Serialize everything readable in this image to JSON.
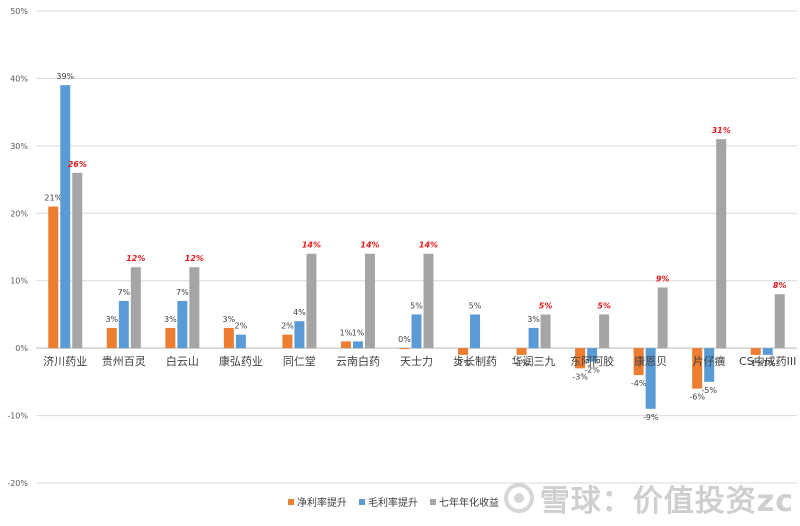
{
  "chart_data": {
    "type": "bar",
    "categories": [
      "济川药业",
      "贵州百灵",
      "白云山",
      "康弘药业",
      "同仁堂",
      "云南白药",
      "天士力",
      "步长制药",
      "华润三九",
      "东阿阿胶",
      "康恩贝",
      "片仔癀",
      "CS中成药III"
    ],
    "series": [
      {
        "name": "净利率提升",
        "color": "#ED7D31",
        "values": [
          21,
          3,
          3,
          3,
          2,
          1,
          0,
          -1,
          -1,
          -3,
          -4,
          -6,
          -1
        ],
        "labels": [
          "21%",
          "3%",
          "3%",
          "3%",
          "2%",
          "1%",
          "0%",
          "-1%",
          "-1%",
          "-3%",
          "-4%",
          "-6%",
          "-1%"
        ]
      },
      {
        "name": "毛利率提升",
        "color": "#5B9BD5",
        "values": [
          39,
          7,
          7,
          2,
          4,
          1,
          5,
          5,
          3,
          -2,
          -9,
          -5,
          -1
        ],
        "labels": [
          "39%",
          "7%",
          "7%",
          "2%",
          "4%",
          "1%",
          "5%",
          "5%",
          "3%",
          "-2%",
          "-9%",
          "-5%",
          "-1%"
        ]
      },
      {
        "name": "七年年化收益",
        "color": "#A5A5A5",
        "label_color": "#E31A1C",
        "values": [
          26,
          12,
          12,
          null,
          14,
          14,
          14,
          null,
          5,
          5,
          9,
          31,
          8
        ],
        "labels": [
          "26%",
          "12%",
          "12%",
          "",
          "14%",
          "14%",
          "14%",
          "",
          "5%",
          "5%",
          "9%",
          "31%",
          "8%"
        ]
      }
    ],
    "ylim": [
      -20,
      50
    ],
    "yticks": [
      -20,
      -10,
      0,
      10,
      20,
      30,
      40,
      50
    ],
    "ytick_labels": [
      "-20%",
      "-10%",
      "0%",
      "10%",
      "20%",
      "30%",
      "40%",
      "50%"
    ],
    "grid": true,
    "legend_position": "bottom"
  },
  "watermark": {
    "text": "雪球：价值投资zc"
  }
}
